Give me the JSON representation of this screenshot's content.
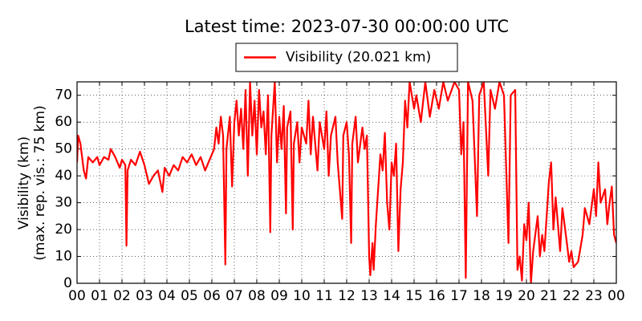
{
  "chart_data": {
    "type": "line",
    "title": "Latest time: 2023-07-30 00:00:00 UTC",
    "ylabel": [
      "Visibility (km)",
      "(max. rep. vis.: 75 km)"
    ],
    "x": [
      0,
      0.05,
      0.15,
      0.3,
      0.4,
      0.5,
      0.7,
      0.9,
      1.0,
      1.2,
      1.4,
      1.5,
      1.7,
      1.9,
      2.0,
      2.15,
      2.2,
      2.25,
      2.4,
      2.6,
      2.8,
      3.0,
      3.2,
      3.4,
      3.6,
      3.8,
      3.9,
      4.1,
      4.3,
      4.5,
      4.7,
      4.9,
      5.1,
      5.3,
      5.5,
      5.7,
      5.9,
      6.1,
      6.2,
      6.3,
      6.4,
      6.5,
      6.6,
      6.65,
      6.8,
      6.9,
      7.0,
      7.1,
      7.2,
      7.3,
      7.4,
      7.5,
      7.6,
      7.7,
      7.8,
      7.9,
      8.0,
      8.1,
      8.2,
      8.3,
      8.4,
      8.5,
      8.6,
      8.65,
      8.8,
      8.9,
      9.0,
      9.1,
      9.2,
      9.3,
      9.35,
      9.5,
      9.6,
      9.65,
      9.8,
      9.9,
      10.0,
      10.2,
      10.3,
      10.4,
      10.5,
      10.7,
      10.8,
      11.0,
      11.1,
      11.2,
      11.3,
      11.5,
      11.6,
      11.8,
      11.85,
      12.0,
      12.1,
      12.2,
      12.25,
      12.4,
      12.5,
      12.7,
      12.8,
      12.9,
      13.0,
      13.05,
      13.15,
      13.2,
      13.3,
      13.4,
      13.5,
      13.6,
      13.7,
      13.8,
      13.9,
      14.0,
      14.1,
      14.2,
      14.3,
      14.4,
      14.5,
      14.6,
      14.7,
      14.8,
      15.0,
      15.1,
      15.3,
      15.5,
      15.7,
      15.9,
      16.1,
      16.3,
      16.5,
      16.8,
      17.0,
      17.1,
      17.2,
      17.3,
      17.4,
      17.6,
      17.8,
      17.9,
      18.1,
      18.3,
      18.4,
      18.6,
      18.8,
      19.0,
      19.2,
      19.3,
      19.5,
      19.6,
      19.7,
      19.8,
      19.9,
      20.0,
      20.1,
      20.2,
      20.3,
      20.5,
      20.6,
      20.7,
      20.8,
      21.0,
      21.1,
      21.2,
      21.3,
      21.5,
      21.6,
      21.8,
      21.9,
      22.0,
      22.1,
      22.3,
      22.5,
      22.6,
      22.8,
      23.0,
      23.1,
      23.2,
      23.3,
      23.5,
      23.6,
      23.7,
      23.8,
      23.9,
      24.0
    ],
    "series": [
      {
        "name": "Visibility (20.021 km)",
        "color": "#ff0000",
        "values": [
          45,
          55,
          52,
          42,
          39,
          47,
          45,
          47,
          44,
          47,
          46,
          50,
          47,
          43,
          46,
          44,
          14,
          42,
          46,
          44,
          49,
          44,
          37,
          40,
          42,
          34,
          43,
          40,
          44,
          42,
          47,
          45,
          48,
          44,
          47,
          42,
          46,
          50,
          58,
          52,
          62,
          55,
          7,
          50,
          62,
          36,
          60,
          68,
          55,
          65,
          50,
          72,
          40,
          75,
          55,
          68,
          48,
          72,
          58,
          64,
          48,
          70,
          19,
          55,
          75,
          45,
          62,
          50,
          66,
          26,
          58,
          64,
          20,
          52,
          60,
          45,
          58,
          52,
          68,
          48,
          62,
          42,
          60,
          50,
          64,
          40,
          55,
          62,
          45,
          24,
          55,
          60,
          48,
          15,
          52,
          62,
          45,
          58,
          50,
          55,
          10,
          3,
          15,
          5,
          22,
          35,
          48,
          42,
          56,
          30,
          20,
          45,
          40,
          52,
          12,
          35,
          45,
          68,
          58,
          75,
          65,
          70,
          60,
          75,
          62,
          72,
          65,
          75,
          68,
          75,
          72,
          48,
          60,
          2,
          75,
          68,
          25,
          70,
          75,
          40,
          72,
          65,
          75,
          70,
          15,
          70,
          72,
          5,
          10,
          1,
          22,
          16,
          30,
          0,
          12,
          25,
          10,
          18,
          12,
          38,
          45,
          20,
          32,
          12,
          28,
          15,
          8,
          12,
          6,
          8,
          18,
          28,
          22,
          35,
          25,
          45,
          30,
          35,
          22,
          30,
          36,
          18,
          15
        ]
      }
    ],
    "xlim": [
      0,
      24
    ],
    "xticks": [
      {
        "value": 0,
        "label": "00"
      },
      {
        "value": 1,
        "label": "01"
      },
      {
        "value": 2,
        "label": "02"
      },
      {
        "value": 3,
        "label": "03"
      },
      {
        "value": 4,
        "label": "04"
      },
      {
        "value": 5,
        "label": "05"
      },
      {
        "value": 6,
        "label": "06"
      },
      {
        "value": 7,
        "label": "07"
      },
      {
        "value": 8,
        "label": "08"
      },
      {
        "value": 9,
        "label": "09"
      },
      10,
      11,
      12,
      13,
      14,
      15,
      16,
      17,
      18,
      19,
      20,
      21,
      22,
      23,
      {
        "value": 24,
        "label": "00"
      }
    ],
    "ylim": [
      0,
      75
    ],
    "yticks": [
      0,
      10,
      20,
      30,
      40,
      50,
      60,
      70
    ],
    "grid": true,
    "legend": "top"
  }
}
